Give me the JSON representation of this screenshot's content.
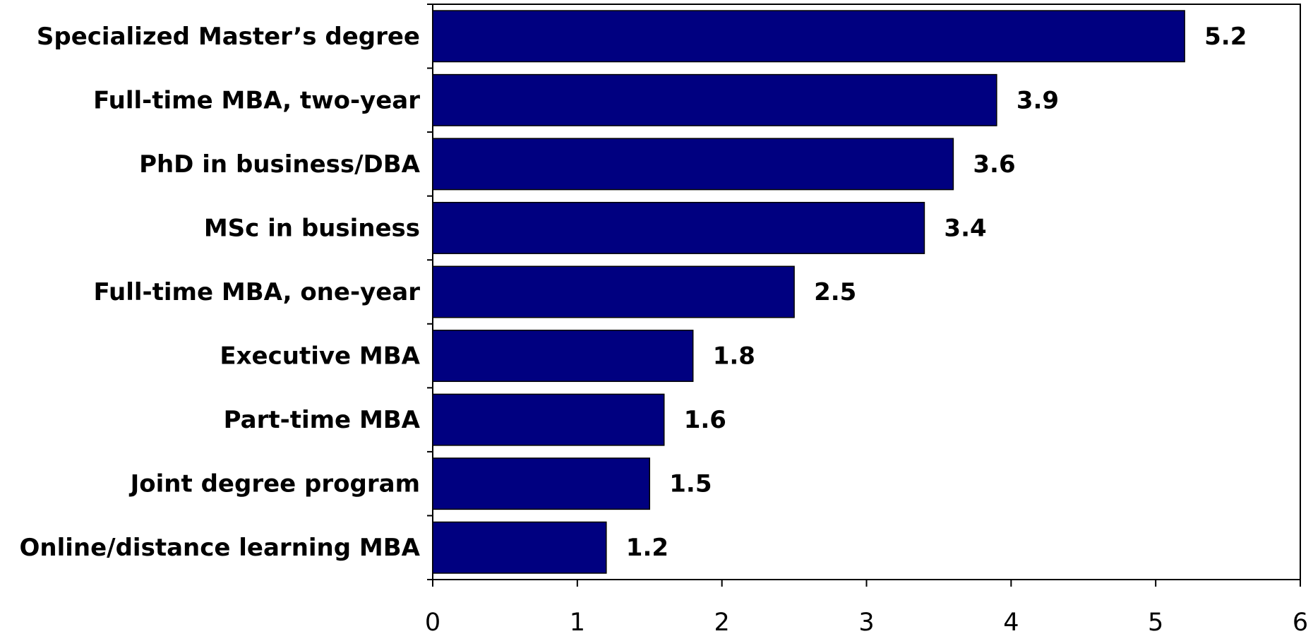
{
  "chart_data": {
    "type": "barh",
    "categories": [
      "Specialized Master’s degree",
      "Full-time MBA, two-year",
      "PhD in business/DBA",
      "MSc in business",
      "Full-time MBA, one-year",
      "Executive MBA",
      "Part-time MBA",
      "Joint degree program",
      "Online/distance learning MBA"
    ],
    "values": [
      5.2,
      3.9,
      3.6,
      3.4,
      2.5,
      1.8,
      1.6,
      1.5,
      1.2
    ],
    "color": "#000080",
    "xlim": [
      0,
      6
    ],
    "xticks": [
      0,
      1,
      2,
      3,
      4,
      5,
      6
    ],
    "grid": false
  }
}
